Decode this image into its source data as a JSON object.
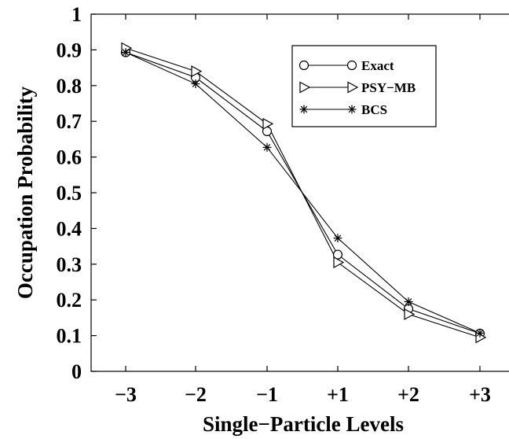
{
  "chart_data": {
    "type": "line",
    "categories": [
      "−3",
      "−2",
      "−1",
      "+1",
      "+2",
      "+3"
    ],
    "xlabel": "Single−Particle Levels",
    "ylabel": "Occupation Probability",
    "ylim": [
      0,
      1
    ],
    "yticks": [
      "0",
      "0.1",
      "0.2",
      "0.3",
      "0.4",
      "0.5",
      "0.6",
      "0.7",
      "0.8",
      "0.9",
      "1"
    ],
    "grid": false,
    "legend_position": "top-right",
    "series": [
      {
        "name": "Exact",
        "marker": "circle",
        "values": [
          0.893,
          0.823,
          0.672,
          0.327,
          0.175,
          0.106
        ]
      },
      {
        "name": "PSY−MB",
        "marker": "triangle",
        "values": [
          0.905,
          0.84,
          0.693,
          0.305,
          0.16,
          0.095
        ]
      },
      {
        "name": "BCS",
        "marker": "star",
        "values": [
          0.893,
          0.805,
          0.627,
          0.373,
          0.195,
          0.107
        ]
      }
    ]
  }
}
